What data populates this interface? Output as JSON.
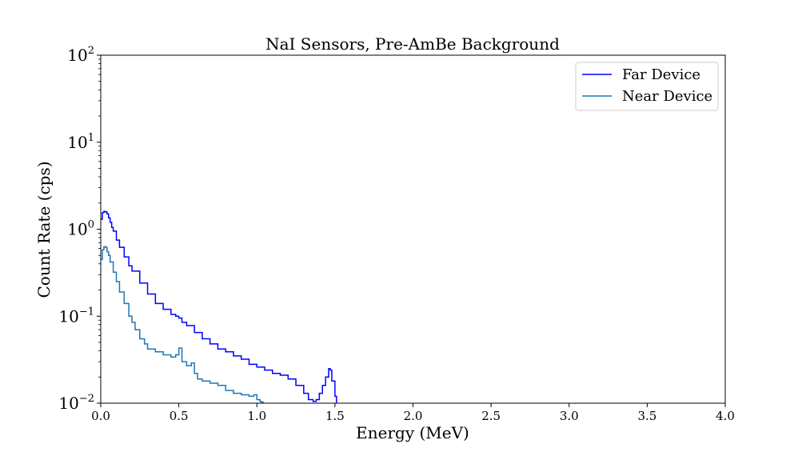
{
  "chart_data": {
    "type": "line",
    "title": "NaI Sensors, Pre-AmBe Background",
    "xlabel": "Energy (MeV)",
    "ylabel": "Count Rate (cps)",
    "xlim": [
      0,
      4
    ],
    "ylim": [
      0.01,
      100
    ],
    "yscale": "log",
    "grid": false,
    "legend_position": "upper right",
    "x_ticks": [
      0.0,
      0.5,
      1.0,
      1.5,
      2.0,
      2.5,
      3.0,
      3.5,
      4.0
    ],
    "x_tick_labels": [
      "0.0",
      "0.5",
      "1.0",
      "1.5",
      "2.0",
      "2.5",
      "3.0",
      "3.5",
      "4.0"
    ],
    "y_ticks": [
      {
        "value": 0.01,
        "base": "10",
        "exp": "−2"
      },
      {
        "value": 0.1,
        "base": "10",
        "exp": "−1"
      },
      {
        "value": 1,
        "base": "10",
        "exp": "0"
      },
      {
        "value": 10,
        "base": "10",
        "exp": "1"
      },
      {
        "value": 100,
        "base": "10",
        "exp": "2"
      }
    ],
    "series": [
      {
        "name": "Far Device",
        "color": "#0000ff",
        "x": [
          0.0,
          0.01,
          0.02,
          0.03,
          0.04,
          0.05,
          0.06,
          0.07,
          0.08,
          0.1,
          0.12,
          0.15,
          0.18,
          0.2,
          0.25,
          0.3,
          0.35,
          0.4,
          0.45,
          0.48,
          0.5,
          0.52,
          0.55,
          0.6,
          0.65,
          0.7,
          0.75,
          0.8,
          0.85,
          0.9,
          0.95,
          1.0,
          1.05,
          1.1,
          1.15,
          1.2,
          1.25,
          1.3,
          1.33,
          1.36,
          1.38,
          1.4,
          1.42,
          1.44,
          1.46,
          1.47,
          1.48,
          1.5,
          1.51
        ],
        "y": [
          1.3,
          1.55,
          1.6,
          1.58,
          1.5,
          1.35,
          1.2,
          1.05,
          0.95,
          0.75,
          0.62,
          0.48,
          0.38,
          0.33,
          0.24,
          0.18,
          0.14,
          0.12,
          0.105,
          0.1,
          0.095,
          0.085,
          0.078,
          0.065,
          0.055,
          0.048,
          0.042,
          0.039,
          0.035,
          0.032,
          0.028,
          0.026,
          0.024,
          0.022,
          0.021,
          0.019,
          0.016,
          0.013,
          0.011,
          0.0105,
          0.011,
          0.013,
          0.016,
          0.02,
          0.025,
          0.024,
          0.018,
          0.012,
          0.0095
        ]
      },
      {
        "name": "Near Device",
        "color": "#1f77b4",
        "x": [
          0.0,
          0.01,
          0.02,
          0.03,
          0.04,
          0.05,
          0.06,
          0.08,
          0.1,
          0.12,
          0.15,
          0.18,
          0.2,
          0.22,
          0.25,
          0.28,
          0.3,
          0.35,
          0.4,
          0.45,
          0.48,
          0.5,
          0.52,
          0.55,
          0.58,
          0.6,
          0.62,
          0.65,
          0.7,
          0.75,
          0.8,
          0.85,
          0.9,
          0.95,
          0.98,
          1.0,
          1.02,
          1.03,
          1.04
        ],
        "y": [
          0.45,
          0.58,
          0.63,
          0.62,
          0.55,
          0.5,
          0.42,
          0.32,
          0.25,
          0.19,
          0.14,
          0.1,
          0.085,
          0.07,
          0.055,
          0.048,
          0.042,
          0.039,
          0.036,
          0.034,
          0.036,
          0.043,
          0.03,
          0.027,
          0.029,
          0.022,
          0.019,
          0.018,
          0.017,
          0.016,
          0.014,
          0.013,
          0.0125,
          0.012,
          0.0125,
          0.011,
          0.0105,
          0.0103,
          0.0095
        ]
      }
    ]
  }
}
